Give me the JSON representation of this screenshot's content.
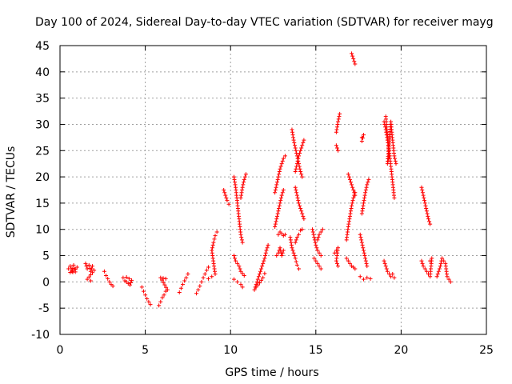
{
  "chart_data": {
    "type": "scatter",
    "title": "Day 100 of 2024, Sidereal Day-to-day VTEC variation (SDTVAR) for receiver mayg",
    "xlabel": "GPS time / hours",
    "ylabel": "SDTVAR / TECUs",
    "xlim": [
      0,
      25
    ],
    "ylim": [
      -10,
      45
    ],
    "xticks": [
      "0",
      "5",
      "10",
      "15",
      "20",
      "25"
    ],
    "yticks": [
      "-10",
      "-5",
      "0",
      "5",
      "10",
      "15",
      "20",
      "25",
      "30",
      "35",
      "40",
      "45"
    ],
    "grid": true,
    "marker": "+",
    "color": "#ff0000",
    "series": [
      {
        "name": "SDTVAR",
        "segments": [
          [
            [
              0.5,
              2.5
            ],
            [
              0.6,
              3.0
            ],
            [
              0.7,
              2.0
            ],
            [
              0.8,
              3.2
            ],
            [
              0.9,
              2.4
            ],
            [
              1.0,
              2.8
            ],
            [
              0.6,
              1.8
            ],
            [
              0.9,
              1.9
            ]
          ],
          [
            [
              1.5,
              3.5
            ],
            [
              1.6,
              2.5
            ],
            [
              1.7,
              3.2
            ],
            [
              1.8,
              2.0
            ],
            [
              1.9,
              3.0
            ],
            [
              2.0,
              2.2
            ],
            [
              1.6,
              0.5
            ],
            [
              1.8,
              0.2
            ]
          ],
          [
            [
              2.6,
              2.0
            ],
            [
              2.7,
              1.2
            ],
            [
              2.8,
              0.6
            ],
            [
              2.9,
              0.0
            ],
            [
              3.0,
              -0.5
            ],
            [
              3.1,
              -0.8
            ]
          ],
          [
            [
              3.7,
              0.8
            ],
            [
              3.8,
              0.2
            ],
            [
              3.9,
              0.0
            ],
            [
              4.0,
              -0.3
            ],
            [
              4.1,
              -0.6
            ],
            [
              4.2,
              0.3
            ],
            [
              3.9,
              0.9
            ]
          ],
          [
            [
              4.8,
              -1.0
            ],
            [
              4.9,
              -1.8
            ],
            [
              5.0,
              -2.5
            ],
            [
              5.1,
              -3.2
            ],
            [
              5.2,
              -3.8
            ],
            [
              5.3,
              -4.3
            ]
          ],
          [
            [
              5.8,
              -4.5
            ],
            [
              5.9,
              -3.8
            ],
            [
              6.0,
              -3.0
            ],
            [
              6.1,
              -2.5
            ],
            [
              6.2,
              -1.8
            ],
            [
              6.3,
              -1.5
            ],
            [
              5.9,
              0.8
            ],
            [
              6.2,
              0.6
            ]
          ],
          [
            [
              7.0,
              -2.0
            ],
            [
              7.1,
              -1.2
            ],
            [
              7.2,
              -0.5
            ],
            [
              7.3,
              0.2
            ],
            [
              7.4,
              0.8
            ],
            [
              7.5,
              1.5
            ]
          ],
          [
            [
              8.0,
              -2.2
            ],
            [
              8.1,
              -1.5
            ],
            [
              8.2,
              -0.8
            ],
            [
              8.3,
              0.0
            ],
            [
              8.4,
              0.8
            ],
            [
              8.5,
              1.5
            ],
            [
              8.6,
              2.2
            ],
            [
              8.7,
              2.8
            ]
          ],
          [
            [
              8.7,
              0.6
            ],
            [
              8.9,
              1.0
            ],
            [
              9.1,
              1.5
            ],
            [
              8.9,
              6.0
            ],
            [
              9.0,
              7.5
            ],
            [
              9.1,
              8.8
            ],
            [
              9.2,
              9.5
            ]
          ],
          [
            [
              9.6,
              17.5
            ],
            [
              9.7,
              16.5
            ],
            [
              9.8,
              15.5
            ],
            [
              9.9,
              14.8
            ]
          ],
          [
            [
              10.2,
              20.0
            ],
            [
              10.3,
              18.0
            ],
            [
              10.4,
              15.0
            ],
            [
              10.5,
              12.0
            ],
            [
              10.6,
              9.0
            ],
            [
              10.7,
              7.5
            ]
          ],
          [
            [
              10.6,
              16.0
            ],
            [
              10.7,
              18.0
            ],
            [
              10.8,
              19.5
            ],
            [
              10.9,
              20.5
            ]
          ],
          [
            [
              10.2,
              5.0
            ],
            [
              10.3,
              4.0
            ],
            [
              10.5,
              3.0
            ],
            [
              10.6,
              2.0
            ],
            [
              10.8,
              1.2
            ]
          ],
          [
            [
              10.2,
              0.5
            ],
            [
              10.4,
              0.0
            ],
            [
              10.6,
              -0.5
            ],
            [
              10.7,
              -1.0
            ]
          ],
          [
            [
              11.4,
              -1.5
            ],
            [
              11.5,
              -0.5
            ],
            [
              11.6,
              0.5
            ],
            [
              11.7,
              1.5
            ],
            [
              11.8,
              2.5
            ],
            [
              11.9,
              3.5
            ],
            [
              12.0,
              4.5
            ],
            [
              12.1,
              6.0
            ],
            [
              12.2,
              7.0
            ]
          ],
          [
            [
              11.5,
              -1.0
            ],
            [
              11.7,
              -0.2
            ],
            [
              11.9,
              0.8
            ],
            [
              12.0,
              1.6
            ]
          ],
          [
            [
              12.6,
              10.5
            ],
            [
              12.7,
              12.0
            ],
            [
              12.8,
              13.5
            ],
            [
              12.9,
              15.0
            ],
            [
              13.0,
              16.5
            ],
            [
              13.1,
              17.5
            ]
          ],
          [
            [
              12.6,
              17.0
            ],
            [
              12.7,
              18.5
            ],
            [
              12.8,
              20.0
            ],
            [
              12.9,
              21.5
            ],
            [
              13.0,
              22.5
            ],
            [
              13.1,
              23.5
            ],
            [
              13.2,
              24.0
            ]
          ],
          [
            [
              12.7,
              5.0
            ],
            [
              12.8,
              5.5
            ],
            [
              12.9,
              6.5
            ],
            [
              13.0,
              5.0
            ],
            [
              13.1,
              6.0
            ]
          ],
          [
            [
              12.8,
              9.0
            ],
            [
              12.9,
              9.5
            ],
            [
              13.0,
              9.2
            ],
            [
              13.1,
              8.8
            ],
            [
              13.2,
              9.0
            ]
          ],
          [
            [
              13.5,
              8.5
            ],
            [
              13.6,
              6.5
            ],
            [
              13.7,
              5.5
            ],
            [
              13.8,
              4.5
            ],
            [
              13.9,
              3.2
            ],
            [
              14.0,
              2.5
            ]
          ],
          [
            [
              13.8,
              7.5
            ],
            [
              13.9,
              8.5
            ],
            [
              14.0,
              9.0
            ],
            [
              14.1,
              9.8
            ],
            [
              14.2,
              10.0
            ]
          ],
          [
            [
              13.6,
              29.0
            ],
            [
              13.7,
              27.0
            ],
            [
              13.8,
              25.5
            ],
            [
              13.9,
              24.0
            ],
            [
              14.0,
              22.5
            ],
            [
              14.1,
              21.0
            ],
            [
              14.2,
              20.0
            ]
          ],
          [
            [
              13.8,
              21.0
            ],
            [
              13.9,
              22.5
            ],
            [
              14.0,
              24.0
            ],
            [
              14.1,
              25.0
            ],
            [
              14.2,
              26.0
            ],
            [
              14.3,
              27.0
            ]
          ],
          [
            [
              13.8,
              18.0
            ],
            [
              13.9,
              16.5
            ],
            [
              14.0,
              15.0
            ],
            [
              14.1,
              14.0
            ],
            [
              14.2,
              13.0
            ],
            [
              14.3,
              12.0
            ]
          ],
          [
            [
              14.8,
              10.0
            ],
            [
              14.9,
              8.5
            ],
            [
              15.0,
              7.0
            ],
            [
              15.1,
              6.0
            ],
            [
              15.2,
              5.5
            ],
            [
              15.3,
              5.0
            ]
          ],
          [
            [
              14.9,
              4.5
            ],
            [
              15.0,
              4.0
            ],
            [
              15.1,
              3.5
            ],
            [
              15.2,
              3.0
            ],
            [
              15.3,
              2.5
            ]
          ],
          [
            [
              15.1,
              8.0
            ],
            [
              15.2,
              9.0
            ],
            [
              15.3,
              9.5
            ],
            [
              15.4,
              10.0
            ]
          ],
          [
            [
              16.2,
              28.5
            ],
            [
              16.3,
              30.5
            ],
            [
              16.4,
              32.0
            ]
          ],
          [
            [
              16.2,
              26.0
            ],
            [
              16.3,
              25.0
            ]
          ],
          [
            [
              16.1,
              5.5
            ],
            [
              16.3,
              6.5
            ],
            [
              16.2,
              4.0
            ],
            [
              16.3,
              3.0
            ]
          ],
          [
            [
              16.8,
              8.0
            ],
            [
              16.9,
              10.5
            ],
            [
              17.0,
              12.5
            ],
            [
              17.1,
              14.5
            ],
            [
              17.2,
              16.0
            ],
            [
              17.3,
              17.0
            ]
          ],
          [
            [
              16.9,
              20.5
            ],
            [
              17.0,
              19.5
            ],
            [
              17.1,
              18.5
            ],
            [
              17.2,
              17.5
            ],
            [
              17.3,
              16.5
            ]
          ],
          [
            [
              16.8,
              4.5
            ],
            [
              16.9,
              4.0
            ],
            [
              17.0,
              3.5
            ],
            [
              17.1,
              3.0
            ],
            [
              17.2,
              2.8
            ],
            [
              17.3,
              2.5
            ]
          ],
          [
            [
              17.1,
              43.5
            ],
            [
              17.2,
              42.5
            ],
            [
              17.3,
              41.5
            ]
          ],
          [
            [
              17.7,
              27.5
            ],
            [
              17.8,
              28.0
            ],
            [
              17.7,
              26.8
            ]
          ],
          [
            [
              17.6,
              9.0
            ],
            [
              17.7,
              7.5
            ],
            [
              17.8,
              6.0
            ],
            [
              17.9,
              4.5
            ],
            [
              18.0,
              3.0
            ]
          ],
          [
            [
              17.6,
              1.0
            ],
            [
              17.8,
              0.5
            ],
            [
              18.0,
              0.8
            ],
            [
              18.2,
              0.6
            ]
          ],
          [
            [
              17.7,
              13.0
            ],
            [
              17.8,
              15.0
            ],
            [
              17.9,
              17.0
            ],
            [
              18.0,
              18.5
            ],
            [
              18.1,
              19.5
            ]
          ],
          [
            [
              19.0,
              30.5
            ],
            [
              19.1,
              29.0
            ],
            [
              19.2,
              27.0
            ],
            [
              19.3,
              25.0
            ],
            [
              19.4,
              22.0
            ],
            [
              19.5,
              19.0
            ],
            [
              19.6,
              16.0
            ]
          ],
          [
            [
              19.1,
              31.5
            ],
            [
              19.2,
              28.0
            ],
            [
              19.3,
              24.0
            ],
            [
              19.2,
              22.5
            ],
            [
              19.4,
              30.5
            ],
            [
              19.5,
              27.0
            ],
            [
              19.6,
              24.0
            ],
            [
              19.7,
              22.5
            ]
          ],
          [
            [
              19.0,
              4.0
            ],
            [
              19.1,
              3.0
            ],
            [
              19.2,
              2.0
            ],
            [
              19.3,
              1.5
            ],
            [
              19.4,
              1.0
            ],
            [
              19.5,
              1.5
            ],
            [
              19.6,
              0.8
            ]
          ],
          [
            [
              21.2,
              18.0
            ],
            [
              21.3,
              16.5
            ],
            [
              21.4,
              15.0
            ],
            [
              21.5,
              13.5
            ],
            [
              21.6,
              12.0
            ],
            [
              21.7,
              11.0
            ]
          ],
          [
            [
              21.2,
              4.0
            ],
            [
              21.3,
              3.0
            ],
            [
              21.4,
              2.5
            ],
            [
              21.5,
              2.0
            ],
            [
              21.6,
              1.5
            ],
            [
              21.7,
              1.0
            ],
            [
              21.8,
              4.5
            ],
            [
              21.7,
              4.0
            ]
          ],
          [
            [
              22.1,
              1.0
            ],
            [
              22.2,
              2.0
            ],
            [
              22.3,
              3.0
            ],
            [
              22.4,
              4.5
            ],
            [
              22.5,
              4.0
            ],
            [
              22.6,
              3.5
            ],
            [
              22.7,
              1.0
            ],
            [
              22.8,
              0.5
            ],
            [
              22.9,
              0.0
            ]
          ]
        ]
      }
    ]
  }
}
